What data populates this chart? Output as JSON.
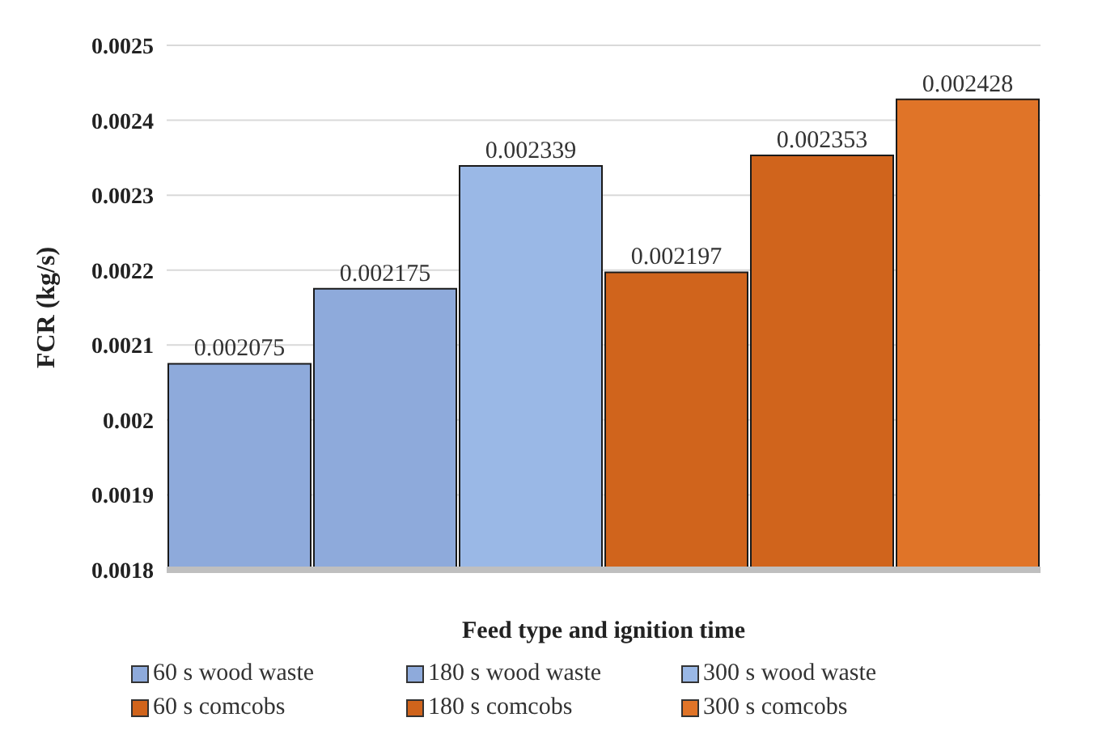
{
  "chart_data": {
    "type": "bar",
    "xlabel": "Feed type and ignition time",
    "ylabel": "FCR (kg/s)",
    "categories": [
      null,
      null,
      null,
      null,
      null,
      null
    ],
    "series": [
      {
        "name": "60 s wood waste",
        "color": "#8eaadb",
        "values": [
          0.002075,
          null,
          null,
          null,
          null,
          null
        ]
      },
      {
        "name": "180 s wood waste",
        "color": "#8eaadb",
        "values": [
          null,
          0.002175,
          null,
          null,
          null,
          null
        ]
      },
      {
        "name": "300 s wood waste",
        "color": "#9ab8e6",
        "values": [
          null,
          null,
          0.002339,
          null,
          null,
          null
        ]
      },
      {
        "name": "60 s comcobs",
        "color": "#d0641c",
        "values": [
          null,
          null,
          null,
          0.002197,
          null,
          null
        ]
      },
      {
        "name": "180 s comcobs",
        "color": "#d0641c",
        "values": [
          null,
          null,
          null,
          null,
          0.002353,
          null
        ]
      },
      {
        "name": "300 s comcobs",
        "color": "#e07428",
        "values": [
          null,
          null,
          null,
          null,
          null,
          0.002428
        ]
      }
    ],
    "ylim": [
      0.0018,
      0.0025
    ],
    "yticks": [
      0.0018,
      0.0019,
      0.002,
      0.0021,
      0.0022,
      0.0023,
      0.0024,
      0.0025
    ],
    "grid": "y",
    "data_labels": true,
    "legend": "bottom",
    "tick_labels": "y"
  }
}
